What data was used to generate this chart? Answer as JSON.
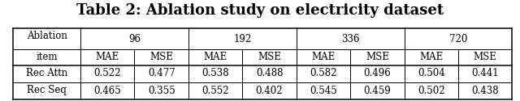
{
  "title": "Table 2: Ablation study on electricity dataset",
  "col_groups": [
    "96",
    "192",
    "336",
    "720"
  ],
  "sub_cols": [
    "MAE",
    "MSE"
  ],
  "row_labels": [
    "Rec Attn",
    "Rec Seq"
  ],
  "header_label_line1": "Ablation",
  "header_label_line2": "item",
  "data": [
    [
      0.522,
      0.477,
      0.538,
      0.488,
      0.582,
      0.496,
      0.504,
      0.441
    ],
    [
      0.465,
      0.355,
      0.552,
      0.402,
      0.545,
      0.459,
      0.502,
      0.438
    ]
  ],
  "bg_color": "#ffffff",
  "text_color": "#000000",
  "title_fontsize": 13,
  "cell_fontsize": 8.5,
  "header_fontsize": 8.5
}
